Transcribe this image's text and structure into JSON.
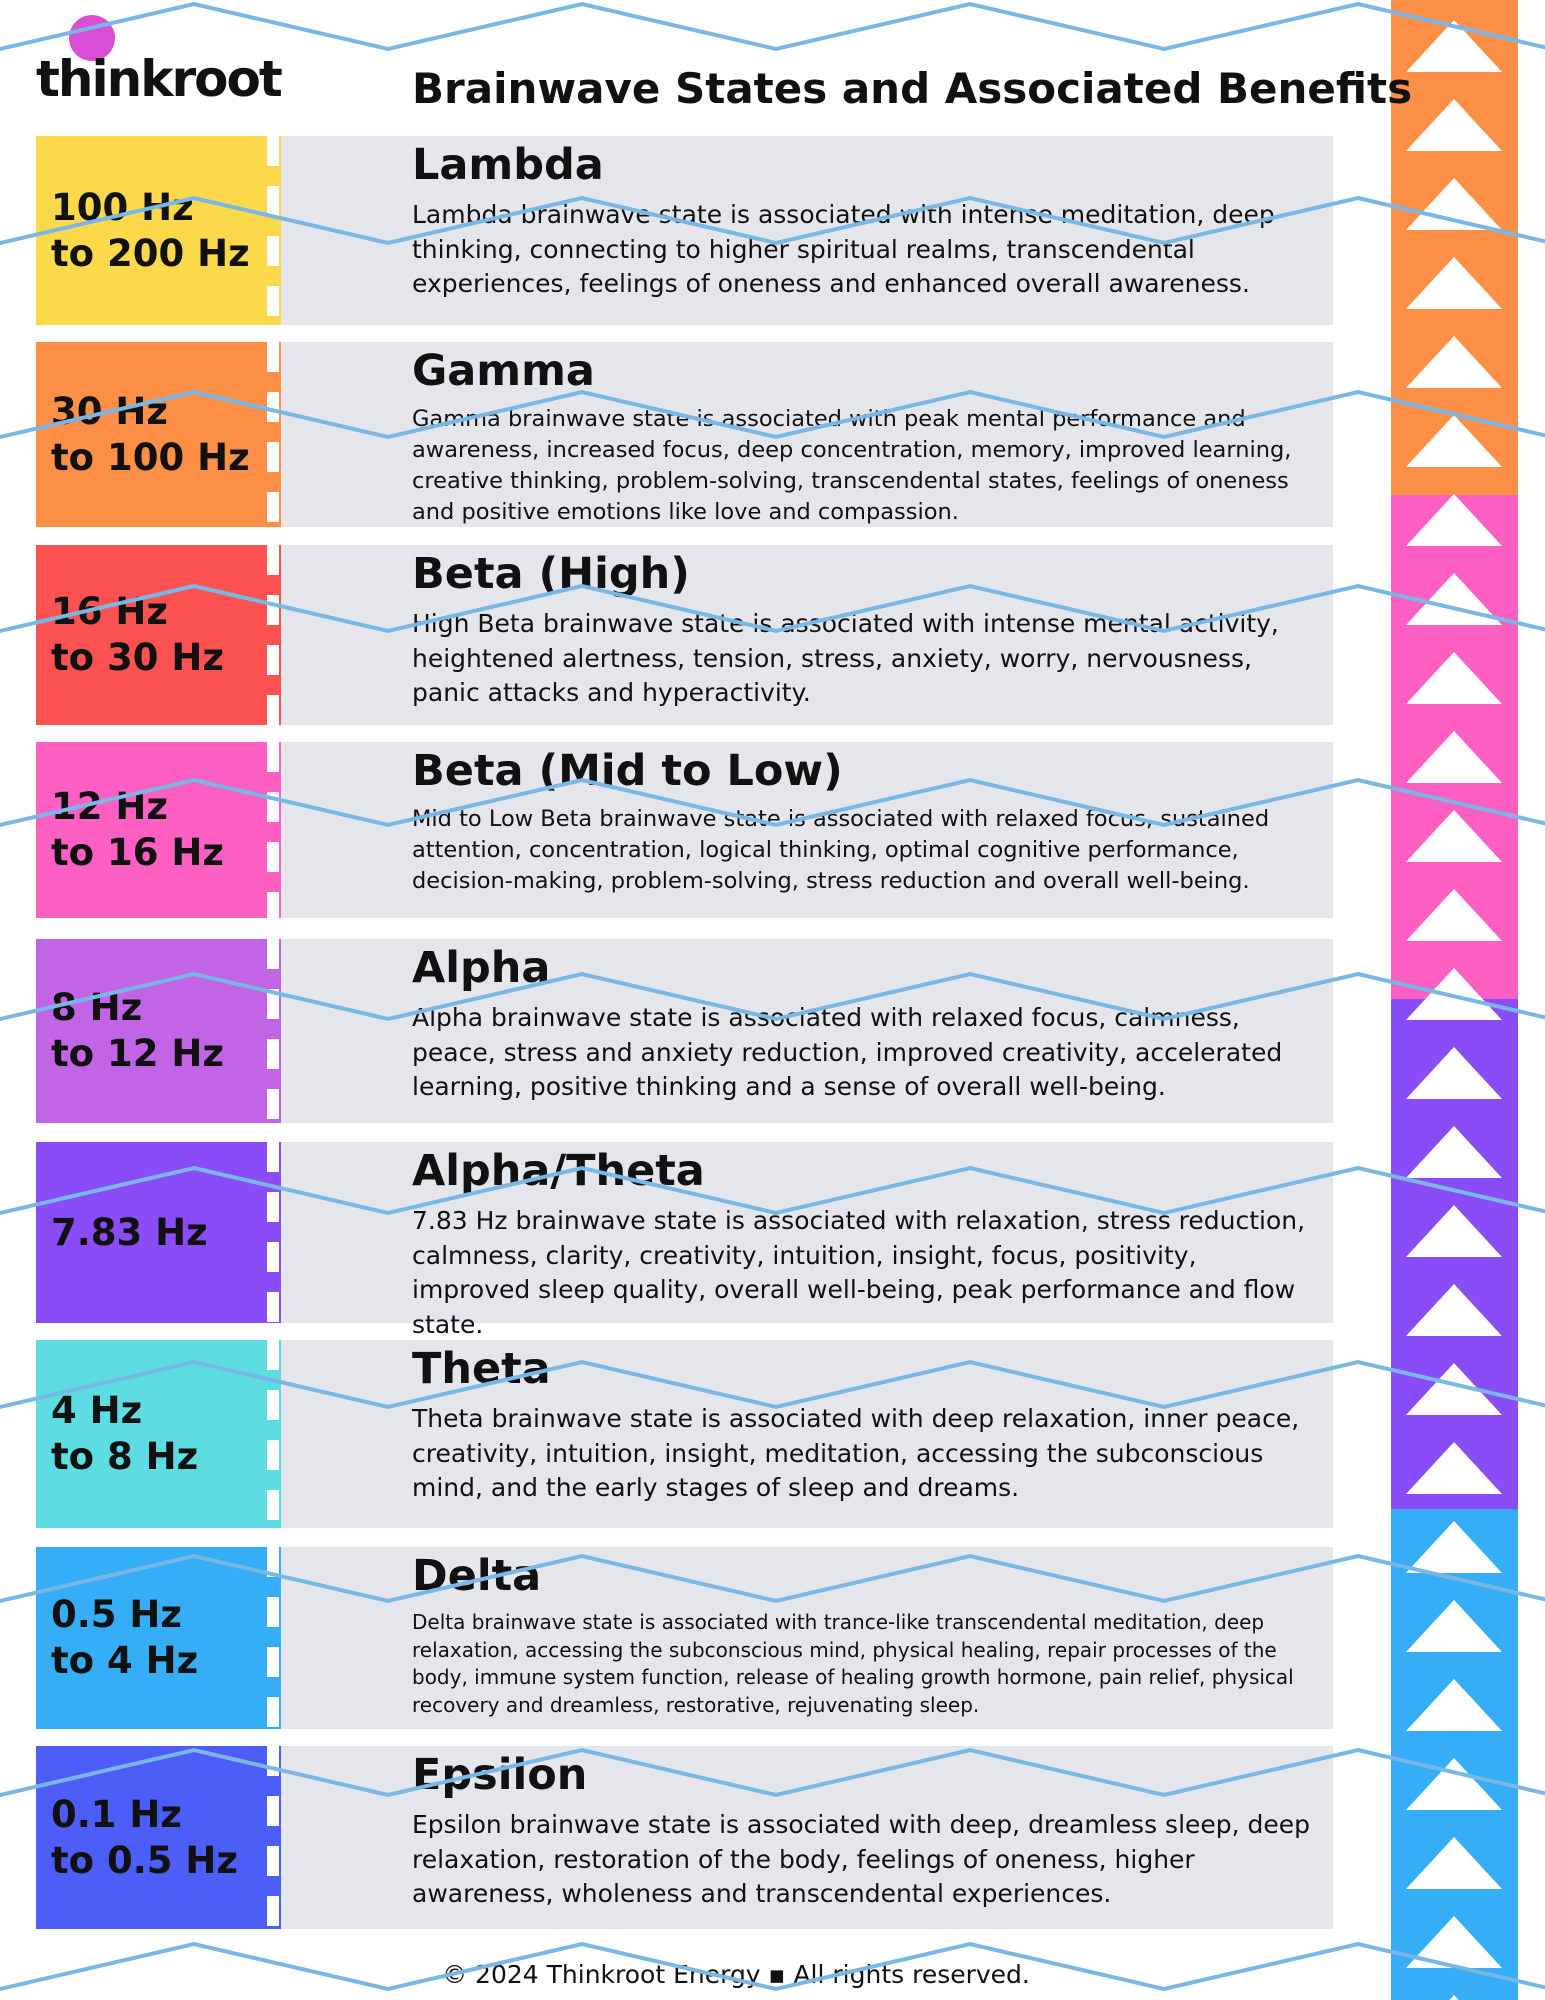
{
  "header": {
    "logo": "thinkroot",
    "title": "Brainwave States and Associated Benefits"
  },
  "rows": [
    {
      "frequency": [
        "100 Hz",
        "to 200 Hz"
      ],
      "name": "Lambda",
      "description": "Lambda brainwave state is associated with intense meditation, deep thinking, connecting to higher spiritual realms, transcendental experiences, feelings of oneness and enhanced overall awareness."
    },
    {
      "frequency": [
        "30 Hz",
        "to 100 Hz"
      ],
      "name": "Gamma",
      "description": "Gamma brainwave state is associated with peak mental performance and awareness, increased focus, deep concentration, memory, improved learning, creative thinking, problem-solving, transcendental states, feelings of oneness and positive emotions like love and compassion."
    },
    {
      "frequency": [
        "16 Hz",
        "to 30 Hz"
      ],
      "name": "Beta (High)",
      "description": "High Beta brainwave state is associated with intense mental activity, heightened alertness, tension, stress, anxiety, worry, nervousness, panic attacks and hyperactivity."
    },
    {
      "frequency": [
        "12 Hz",
        "to 16 Hz"
      ],
      "name": "Beta (Mid to Low)",
      "description": "Mid to Low Beta brainwave state is associated with relaxed focus, sustained attention, concentration, logical thinking, optimal cognitive performance, decision-making, problem-solving, stress reduction and overall well-being."
    },
    {
      "frequency": [
        "8 Hz",
        "to 12 Hz"
      ],
      "name": "Alpha",
      "description": "Alpha brainwave state is associated with relaxed focus, calmness, peace, stress and anxiety reduction, improved creativity, accelerated learning, positive thinking and a sense of overall well-being."
    },
    {
      "frequency": [
        "7.83 Hz"
      ],
      "name": "Alpha/Theta",
      "description": "7.83 Hz brainwave state is associated with relaxation, stress reduction, calmness, clarity, creativity, intuition, insight, focus, positivity, improved sleep quality, overall well-being, peak performance and flow state."
    },
    {
      "frequency": [
        "4 Hz",
        "to 8 Hz"
      ],
      "name": "Theta",
      "description": "Theta brainwave state is associated with deep relaxation, inner peace, creativity, intuition, insight, meditation, accessing the subconscious mind, and the early stages of sleep and dreams."
    },
    {
      "frequency": [
        "0.5 Hz",
        "to 4 Hz"
      ],
      "name": "Delta",
      "description": "Delta brainwave state is associated with trance-like transcendental meditation, deep relaxation, accessing the subconscious mind, physical healing, repair processes of the body, immune system function, release of healing growth hormone, pain relief, physical recovery and dreamless, restorative, rejuvenating sleep."
    },
    {
      "frequency": [
        "0.1 Hz",
        "to 0.5 Hz"
      ],
      "name": "Epsilon",
      "description": "Epsilon brainwave state is associated with deep, dreamless sleep, deep relaxation, restoration of the body, feelings of oneness, higher awareness, wholeness and transcendental experiences."
    }
  ],
  "footer": "© 2024 Thinkroot Energy ▪ All rights reserved."
}
